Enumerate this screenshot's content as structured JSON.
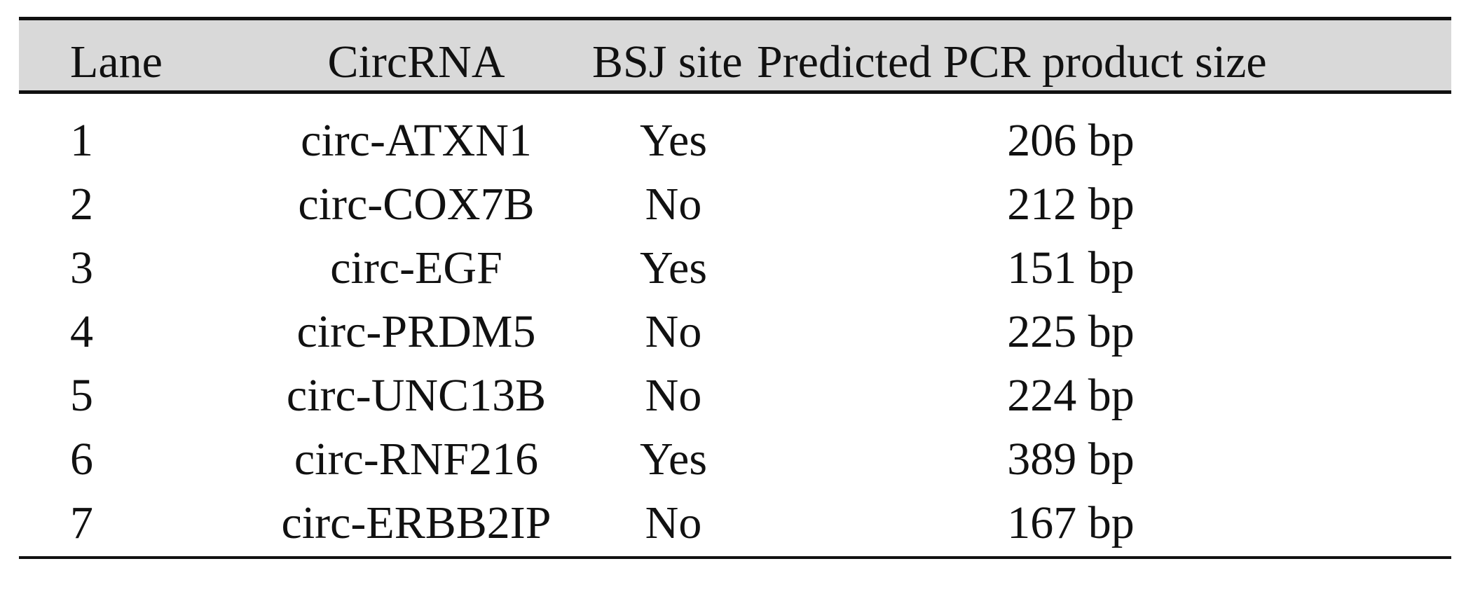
{
  "table": {
    "headers": {
      "lane": "Lane",
      "circrna": "CircRNA",
      "bsj": "BSJ site",
      "size": "Predicted PCR product size"
    },
    "rows": [
      {
        "lane": "1",
        "circrna": "circ-ATXN1",
        "bsj": "Yes",
        "size": "206 bp"
      },
      {
        "lane": "2",
        "circrna": "circ-COX7B",
        "bsj": "No",
        "size": "212 bp"
      },
      {
        "lane": "3",
        "circrna": "circ-EGF",
        "bsj": "Yes",
        "size": "151 bp"
      },
      {
        "lane": "4",
        "circrna": "circ-PRDM5",
        "bsj": "No",
        "size": "225 bp"
      },
      {
        "lane": "5",
        "circrna": "circ-UNC13B",
        "bsj": "No",
        "size": "224 bp"
      },
      {
        "lane": "6",
        "circrna": "circ-RNF216",
        "bsj": "Yes",
        "size": "389 bp"
      },
      {
        "lane": "7",
        "circrna": "circ-ERBB2IP",
        "bsj": "No",
        "size": "167 bp"
      }
    ],
    "header_bg": "#d9d9d9"
  }
}
